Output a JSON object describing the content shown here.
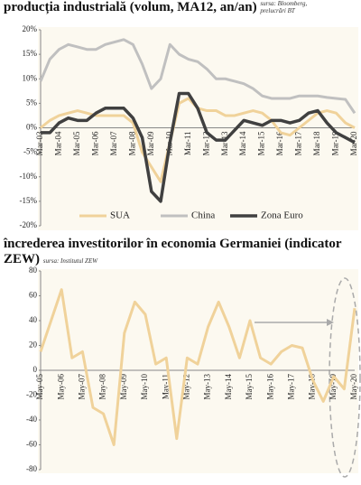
{
  "chart_data": [
    {
      "type": "line",
      "title": "producția industrială (volum, MA12, an/an)",
      "source": "sursa: Bloomberg, prelucrări BT",
      "categories": [
        "Mar-03",
        null,
        "Mar-04",
        null,
        "Mar-05",
        null,
        "Mar-06",
        null,
        "Mar-07",
        null,
        "Mar-08",
        null,
        "Mar-09",
        null,
        "Mar-10",
        null,
        "Mar-11",
        null,
        "Mar-12",
        null,
        "Mar-13",
        null,
        "Mar-14",
        null,
        "Mar-15",
        null,
        "Mar-16",
        null,
        "Mar-17",
        null,
        "Mar-18",
        null,
        "Mar-19",
        null,
        "Mar-20"
      ],
      "series": [
        {
          "name": "SUA",
          "color": "#f0d29a",
          "values": [
            0,
            1.5,
            2.5,
            3,
            3.5,
            3,
            2.5,
            2.5,
            2.5,
            2.5,
            1,
            -5,
            -8,
            -11,
            -3,
            5,
            6,
            4,
            3.5,
            3.5,
            2.5,
            2.5,
            3,
            3.5,
            3,
            1.5,
            -1,
            -1.5,
            0,
            1.5,
            3,
            3.5,
            3,
            1,
            0
          ]
        },
        {
          "name": "China",
          "color": "#c0c0c0",
          "values": [
            9.5,
            14,
            16,
            17,
            16.5,
            16,
            16,
            17,
            17.5,
            18,
            17,
            13,
            8,
            10,
            17,
            15,
            14,
            13.5,
            12,
            10,
            10,
            9.5,
            9,
            8,
            6.5,
            6,
            6,
            6,
            6.5,
            6.5,
            6.5,
            6.2,
            6,
            5.8,
            3
          ]
        },
        {
          "name": "Zona Euro",
          "color": "#404040",
          "values": [
            -1,
            -1,
            1,
            2,
            1.5,
            1.5,
            3,
            4,
            4,
            4,
            2,
            -2,
            -13,
            -15,
            -3,
            7,
            7,
            4,
            -1,
            -2.5,
            -2.5,
            -0.5,
            1.5,
            1,
            0.5,
            1.5,
            1.5,
            1,
            1.5,
            3,
            3.5,
            1,
            -1,
            -2,
            -3
          ]
        }
      ],
      "ylim": [
        -20,
        20
      ],
      "yticks": [
        {
          "value": -20,
          "label": "-20%"
        },
        {
          "value": -15,
          "label": "-15%"
        },
        {
          "value": -10,
          "label": "-10%"
        },
        {
          "value": -5,
          "label": "-5%"
        },
        {
          "value": 0,
          "label": "0%"
        },
        {
          "value": 5,
          "label": "5%"
        },
        {
          "value": 10,
          "label": "10%"
        },
        {
          "value": 15,
          "label": "15%"
        },
        {
          "value": 20,
          "label": "20%"
        }
      ],
      "legend": "bottom"
    },
    {
      "type": "line",
      "title": "încrederea investitorilor în economia Germaniei (indicator ZEW)",
      "source": "sursa: Institutul ZEW",
      "categories": [
        "May-05",
        null,
        "May-06",
        null,
        "May-07",
        null,
        "May-08",
        null,
        "May-09",
        null,
        "May-10",
        null,
        "May-11",
        null,
        "May-12",
        null,
        "May-13",
        null,
        "May-14",
        null,
        "May-15",
        null,
        "May-16",
        null,
        "May-17",
        null,
        "May-18",
        null,
        "May-19",
        null,
        "May-20"
      ],
      "color": "#f0d29a",
      "values": [
        15,
        40,
        65,
        10,
        15,
        -30,
        -35,
        -60,
        30,
        55,
        45,
        5,
        10,
        -55,
        10,
        5,
        35,
        55,
        35,
        10,
        40,
        10,
        5,
        15,
        20,
        18,
        -8,
        -25,
        -5,
        -15,
        50
      ],
      "ylim": [
        -80,
        80
      ],
      "yticks": [
        -80,
        -60,
        -40,
        -20,
        0,
        20,
        40,
        60,
        80
      ]
    }
  ]
}
